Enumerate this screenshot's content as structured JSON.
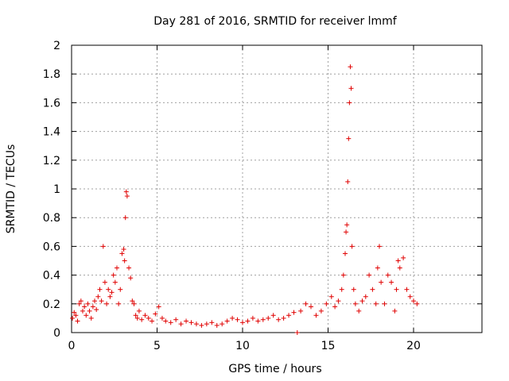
{
  "chart_data": {
    "type": "scatter",
    "title": "Day 281 of 2016, SRMTID for receiver lmmf",
    "xlabel": "GPS time / hours",
    "ylabel": "SRMTID / TECUs",
    "xlim": [
      0,
      24
    ],
    "ylim": [
      0,
      2
    ],
    "xticks": [
      0,
      5,
      10,
      15,
      20
    ],
    "xtick_labels": [
      "0",
      "5",
      "10",
      "15",
      "20"
    ],
    "yticks": [
      0,
      0.2,
      0.4,
      0.6,
      0.8,
      1.0,
      1.2,
      1.4,
      1.6,
      1.8,
      2.0
    ],
    "ytick_labels": [
      "0",
      "0.2",
      "0.4",
      "0.6",
      "0.8",
      "1",
      "1.2",
      "1.4",
      "1.6",
      "1.8",
      "2"
    ],
    "grid": true,
    "marker": "+",
    "series": [
      {
        "name": "SRMTID",
        "color": "#e00000",
        "x": [
          0.05,
          0.15,
          0.25,
          0.35,
          0.45,
          0.55,
          0.65,
          0.75,
          0.85,
          0.95,
          1.05,
          1.15,
          1.25,
          1.35,
          1.45,
          1.55,
          1.65,
          1.75,
          1.85,
          1.95,
          2.05,
          2.15,
          2.25,
          2.35,
          2.45,
          2.55,
          2.65,
          2.75,
          2.85,
          2.95,
          3.05,
          3.1,
          3.15,
          3.2,
          3.25,
          3.35,
          3.45,
          3.55,
          3.65,
          3.75,
          3.85,
          3.95,
          4.1,
          4.3,
          4.5,
          4.7,
          4.9,
          5.1,
          5.3,
          5.5,
          5.8,
          6.1,
          6.4,
          6.7,
          7.0,
          7.3,
          7.6,
          7.9,
          8.2,
          8.5,
          8.8,
          9.1,
          9.4,
          9.7,
          10.0,
          10.3,
          10.6,
          10.9,
          11.2,
          11.5,
          11.8,
          12.1,
          12.4,
          12.7,
          13.0,
          13.2,
          13.4,
          13.7,
          14.0,
          14.3,
          14.6,
          14.9,
          15.2,
          15.4,
          15.6,
          15.8,
          15.9,
          16.0,
          16.05,
          16.1,
          16.15,
          16.2,
          16.25,
          16.3,
          16.35,
          16.4,
          16.5,
          16.6,
          16.8,
          17.0,
          17.2,
          17.4,
          17.6,
          17.8,
          17.9,
          18.0,
          18.1,
          18.3,
          18.5,
          18.7,
          18.9,
          19.0,
          19.1,
          19.2,
          19.4,
          19.6,
          19.8,
          20.0,
          20.2
        ],
        "y": [
          0.1,
          0.14,
          0.12,
          0.08,
          0.2,
          0.22,
          0.15,
          0.18,
          0.12,
          0.2,
          0.15,
          0.1,
          0.18,
          0.22,
          0.16,
          0.25,
          0.3,
          0.22,
          0.6,
          0.35,
          0.2,
          0.3,
          0.25,
          0.28,
          0.4,
          0.35,
          0.45,
          0.2,
          0.3,
          0.55,
          0.58,
          0.5,
          0.8,
          0.98,
          0.95,
          0.45,
          0.38,
          0.22,
          0.2,
          0.12,
          0.1,
          0.15,
          0.09,
          0.12,
          0.1,
          0.08,
          0.13,
          0.18,
          0.1,
          0.08,
          0.07,
          0.09,
          0.06,
          0.08,
          0.07,
          0.06,
          0.05,
          0.06,
          0.07,
          0.05,
          0.06,
          0.08,
          0.1,
          0.09,
          0.07,
          0.08,
          0.1,
          0.08,
          0.09,
          0.1,
          0.12,
          0.09,
          0.1,
          0.12,
          0.14,
          0.0,
          0.15,
          0.2,
          0.18,
          0.12,
          0.15,
          0.2,
          0.25,
          0.18,
          0.22,
          0.3,
          0.4,
          0.55,
          0.7,
          0.75,
          1.05,
          1.35,
          1.6,
          1.85,
          1.7,
          0.6,
          0.3,
          0.2,
          0.15,
          0.22,
          0.25,
          0.4,
          0.3,
          0.2,
          0.45,
          0.6,
          0.35,
          0.2,
          0.4,
          0.35,
          0.15,
          0.3,
          0.5,
          0.45,
          0.52,
          0.3,
          0.25,
          0.22,
          0.2
        ]
      }
    ]
  }
}
